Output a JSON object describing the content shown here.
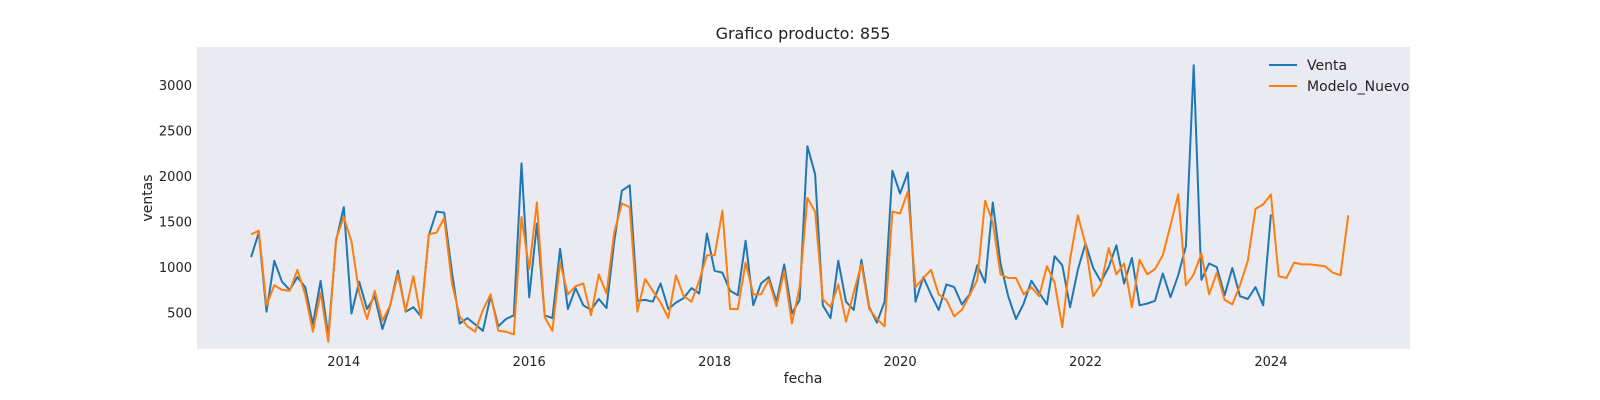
{
  "chart_data": {
    "type": "line",
    "title": "Grafico producto: 855",
    "xlabel": "fecha",
    "ylabel": "ventas",
    "x_start": "2013-01",
    "x_step": "month",
    "xlim": [
      "2012-06",
      "2025-07"
    ],
    "ylim": [
      100,
      3420
    ],
    "xticks": [
      "2014",
      "2016",
      "2018",
      "2020",
      "2022",
      "2024"
    ],
    "yticks": [
      500,
      1000,
      1500,
      2000,
      2500,
      3000
    ],
    "grid": false,
    "legend_position": "top-right",
    "series": [
      {
        "name": "Venta",
        "color": "#1f77b4",
        "values": [
          1110,
          1380,
          510,
          1070,
          840,
          750,
          890,
          780,
          370,
          850,
          240,
          1290,
          1660,
          490,
          840,
          540,
          680,
          320,
          580,
          960,
          510,
          560,
          460,
          1350,
          1610,
          1600,
          940,
          380,
          440,
          370,
          300,
          680,
          350,
          430,
          470,
          2140,
          670,
          1480,
          470,
          440,
          1200,
          540,
          770,
          580,
          530,
          650,
          550,
          1280,
          1840,
          1900,
          630,
          640,
          620,
          820,
          540,
          610,
          660,
          770,
          710,
          1370,
          960,
          940,
          740,
          690,
          1290,
          580,
          820,
          890,
          620,
          1030,
          490,
          640,
          2330,
          2020,
          580,
          440,
          1070,
          620,
          530,
          1080,
          560,
          390,
          620,
          2060,
          1810,
          2040,
          620,
          890,
          700,
          530,
          810,
          780,
          590,
          700,
          1020,
          830,
          1710,
          1040,
          680,
          430,
          600,
          850,
          720,
          590,
          1120,
          1020,
          560,
          970,
          1260,
          990,
          840,
          1000,
          1240,
          820,
          1100,
          580,
          600,
          630,
          930,
          670,
          910,
          1230,
          3220,
          860,
          1040,
          1000,
          690,
          990,
          680,
          650,
          780,
          580,
          1580
        ]
      },
      {
        "name": "Modelo_Nuevo",
        "color": "#ff7f0e",
        "values": [
          1360,
          1400,
          580,
          800,
          750,
          740,
          970,
          700,
          290,
          720,
          180,
          1310,
          1550,
          1280,
          720,
          430,
          740,
          410,
          580,
          920,
          520,
          900,
          440,
          1360,
          1380,
          1540,
          820,
          460,
          350,
          290,
          530,
          700,
          300,
          290,
          260,
          1550,
          980,
          1710,
          450,
          300,
          1050,
          700,
          790,
          820,
          470,
          920,
          710,
          1380,
          1700,
          1660,
          510,
          870,
          740,
          610,
          440,
          910,
          680,
          620,
          850,
          1130,
          1130,
          1620,
          540,
          540,
          1050,
          700,
          700,
          860,
          570,
          960,
          380,
          780,
          1760,
          1610,
          650,
          560,
          810,
          400,
          720,
          1030,
          540,
          430,
          350,
          1610,
          1590,
          1830,
          780,
          880,
          970,
          700,
          640,
          460,
          530,
          690,
          860,
          1730,
          1490,
          920,
          880,
          880,
          700,
          780,
          680,
          1010,
          830,
          340,
          1090,
          1570,
          1250,
          680,
          810,
          1210,
          920,
          1040,
          560,
          1080,
          920,
          980,
          1130,
          1460,
          1800,
          800,
          920,
          1150,
          700,
          940,
          640,
          590,
          800,
          1070,
          1640,
          1690,
          1800,
          900,
          880,
          1050,
          1030,
          1030,
          1020,
          1010,
          940,
          910,
          1570
        ]
      }
    ]
  }
}
